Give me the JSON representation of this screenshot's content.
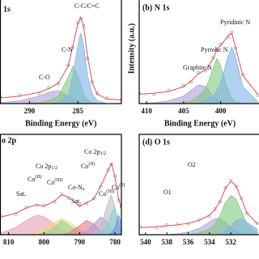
{
  "chart_data": [
    {
      "type": "xps",
      "title": "1s",
      "xlabel": "Binding Energy (eV)",
      "xlim": [
        293,
        280.5
      ],
      "ylim": [
        0,
        100
      ],
      "xticks": [
        290,
        285
      ],
      "x": [
        293,
        291,
        289,
        288,
        287,
        286,
        285.5,
        285,
        284.7,
        284.4,
        284,
        283.5,
        283,
        282,
        280.5
      ],
      "series": [
        {
          "kind": "area",
          "color": "#b39ddb",
          "values": [
            1,
            3,
            8,
            12,
            14,
            8,
            5,
            2,
            1,
            0,
            0,
            0,
            0,
            0,
            0
          ]
        },
        {
          "kind": "area",
          "color": "#7fc97f",
          "values": [
            0,
            0,
            1,
            3,
            8,
            28,
            40,
            30,
            20,
            10,
            4,
            1,
            0,
            0,
            0
          ]
        },
        {
          "kind": "area",
          "color": "#7fb3e6",
          "values": [
            0,
            0,
            0,
            0,
            1,
            8,
            30,
            62,
            75,
            62,
            30,
            10,
            3,
            0,
            0
          ]
        },
        {
          "kind": "scatter",
          "color": "#9a9a9a",
          "values": [
            7,
            9,
            11,
            17,
            21,
            41,
            60,
            86,
            90,
            83,
            48,
            23,
            11,
            6,
            4
          ]
        },
        {
          "kind": "line",
          "color": "#e05050",
          "values": [
            6,
            8,
            12,
            16,
            22,
            40,
            62,
            85,
            92,
            82,
            50,
            22,
            10,
            5,
            4
          ]
        }
      ],
      "annotations": [
        [
          {
            "text": "C-C/C=C"
          }
        ],
        [
          {
            "text": "C-N"
          }
        ],
        [
          {
            "text": "C-O"
          }
        ]
      ]
    },
    {
      "type": "xps",
      "title": "(b) N 1s",
      "xlabel": "Binding Energy (eV)",
      "ylabel": "Intensity (a.u.)",
      "xlim": [
        411,
        394.6
      ],
      "ylim": [
        0,
        100
      ],
      "xticks": [
        410,
        405,
        400
      ],
      "x": [
        411,
        409,
        407,
        405,
        404,
        403,
        402,
        401,
        400.5,
        400,
        399,
        398.5,
        398,
        397,
        395
      ],
      "series": [
        {
          "kind": "area",
          "color": "#b39ddb",
          "values": [
            0,
            1,
            3,
            8,
            14,
            20,
            18,
            8,
            4,
            2,
            0,
            0,
            0,
            0,
            0
          ]
        },
        {
          "kind": "area",
          "color": "#7fc97f",
          "values": [
            0,
            0,
            0,
            1,
            3,
            8,
            16,
            38,
            48,
            40,
            14,
            6,
            2,
            0,
            0
          ]
        },
        {
          "kind": "area",
          "color": "#7fb3e6",
          "values": [
            0,
            0,
            0,
            0,
            0,
            1,
            3,
            8,
            14,
            22,
            50,
            60,
            50,
            18,
            2
          ]
        },
        {
          "kind": "scatter",
          "color": "#9a9a9a",
          "values": [
            11,
            10,
            14,
            19,
            23,
            33,
            35,
            49,
            57,
            63,
            71,
            76,
            59,
            31,
            9
          ]
        },
        {
          "kind": "line",
          "color": "#e05050",
          "values": [
            10,
            11,
            13,
            18,
            24,
            32,
            36,
            48,
            58,
            62,
            72,
            75,
            60,
            30,
            10
          ]
        }
      ],
      "annotations": [
        [
          {
            "text": "Graphite N"
          }
        ],
        [
          {
            "text": "Pyrrolic N"
          }
        ],
        [
          {
            "text": "Pyridinic N"
          }
        ]
      ]
    },
    {
      "type": "xps",
      "title": "o 2p",
      "xlim": [
        812.3,
        778.2
      ],
      "ylim": [
        0,
        100
      ],
      "xticks": [
        810,
        800,
        790,
        780
      ],
      "x": [
        812,
        808,
        805,
        802,
        800,
        797,
        795,
        793,
        790,
        788,
        786,
        784,
        782,
        781,
        780,
        779,
        778.2
      ],
      "series": [
        {
          "kind": "area",
          "color": "#e8a0b8",
          "values": [
            2,
            8,
            16,
            22,
            20,
            12,
            5,
            2,
            0,
            0,
            0,
            0,
            0,
            0,
            0,
            0,
            0
          ]
        },
        {
          "kind": "area",
          "color": "#f2d57a",
          "values": [
            0,
            0,
            0,
            2,
            6,
            14,
            18,
            14,
            6,
            2,
            0,
            0,
            0,
            0,
            0,
            0,
            0
          ]
        },
        {
          "kind": "area",
          "color": "#9ad29a",
          "values": [
            0,
            0,
            0,
            0,
            2,
            8,
            16,
            10,
            3,
            0,
            0,
            0,
            0,
            0,
            0,
            0,
            0
          ]
        },
        {
          "kind": "area",
          "color": "#e07a8a",
          "values": [
            0,
            0,
            0,
            0,
            0,
            0,
            0,
            2,
            10,
            16,
            12,
            4,
            0,
            0,
            0,
            0,
            0
          ]
        },
        {
          "kind": "area",
          "color": "#b39ddb",
          "values": [
            0,
            0,
            0,
            0,
            0,
            0,
            0,
            0,
            0,
            4,
            12,
            20,
            14,
            6,
            2,
            0,
            0
          ]
        },
        {
          "kind": "area",
          "color": "#bdbdbd",
          "values": [
            0,
            0,
            0,
            0,
            0,
            0,
            0,
            0,
            0,
            0,
            2,
            10,
            35,
            45,
            30,
            8,
            1
          ]
        },
        {
          "kind": "area",
          "color": "#7fd3d3",
          "values": [
            0,
            0,
            0,
            0,
            0,
            0,
            0,
            0,
            0,
            0,
            0,
            2,
            10,
            24,
            30,
            14,
            2
          ]
        },
        {
          "kind": "area",
          "color": "#6a8fe0",
          "values": [
            0,
            0,
            0,
            0,
            0,
            0,
            0,
            0,
            0,
            0,
            0,
            0,
            0,
            2,
            8,
            22,
            12
          ]
        },
        {
          "kind": "scatter",
          "color": "#9a9a9a",
          "values": [
            21,
            23,
            31,
            33,
            33,
            37,
            46,
            41,
            33,
            35,
            41,
            54,
            73,
            79,
            66,
            39,
            31
          ]
        },
        {
          "kind": "line",
          "color": "#e05050",
          "values": [
            20,
            24,
            30,
            34,
            32,
            38,
            45,
            42,
            32,
            36,
            40,
            55,
            72,
            80,
            65,
            40,
            30
          ]
        }
      ],
      "annotations": [
        [
          {
            "text": "Sat."
          }
        ],
        [
          {
            "text": "Co 2p"
          },
          {
            "sub": "1/2"
          }
        ],
        [
          {
            "text": "Co"
          },
          {
            "sup": "(II)"
          }
        ],
        [
          {
            "text": "Co"
          },
          {
            "sup": "(III)"
          }
        ],
        [
          {
            "text": "Co-N"
          },
          {
            "sub": "x"
          }
        ],
        [
          {
            "text": "Sat."
          }
        ],
        [
          {
            "text": "Co 2p"
          },
          {
            "sub": "3/2"
          }
        ],
        [
          {
            "text": "Co"
          },
          {
            "sup": "(II)"
          }
        ],
        [
          {
            "text": "Co"
          },
          {
            "sup": "(III)"
          }
        ],
        [
          {
            "text": "Co"
          },
          {
            "sup": "(0)"
          }
        ]
      ]
    },
    {
      "type": "xps",
      "title": "(d) O 1s",
      "xlim": [
        540.6,
        529.2
      ],
      "ylim": [
        0,
        100
      ],
      "xticks": [
        540,
        538,
        536,
        534,
        532
      ],
      "x": [
        540.5,
        539,
        538,
        537,
        536,
        535,
        534,
        533.5,
        533,
        532.5,
        532,
        531.5,
        531,
        530.5,
        529.5
      ],
      "series": [
        {
          "kind": "area",
          "color": "#b39ddb",
          "values": [
            0,
            0,
            0,
            1,
            3,
            7,
            14,
            18,
            18,
            14,
            8,
            4,
            2,
            0,
            0
          ]
        },
        {
          "kind": "area",
          "color": "#7fc97f",
          "values": [
            0,
            0,
            0,
            0,
            0,
            2,
            6,
            12,
            22,
            36,
            44,
            40,
            26,
            12,
            2
          ]
        },
        {
          "kind": "area",
          "color": "#7fb3e6",
          "values": [
            0,
            0,
            0,
            0,
            0,
            0,
            0,
            0,
            1,
            4,
            10,
            16,
            18,
            14,
            6
          ]
        },
        {
          "kind": "scatter",
          "color": "#9a9a9a",
          "values": [
            9,
            8,
            11,
            12,
            12,
            17,
            21,
            29,
            37,
            53,
            61,
            54,
            41,
            24,
            13
          ]
        },
        {
          "kind": "line",
          "color": "#e05050",
          "values": [
            8,
            9,
            10,
            11,
            13,
            16,
            22,
            28,
            38,
            52,
            60,
            55,
            40,
            25,
            12
          ]
        }
      ],
      "annotations": [
        [
          {
            "text": "O1"
          }
        ],
        [
          {
            "text": "O2"
          }
        ]
      ]
    }
  ]
}
